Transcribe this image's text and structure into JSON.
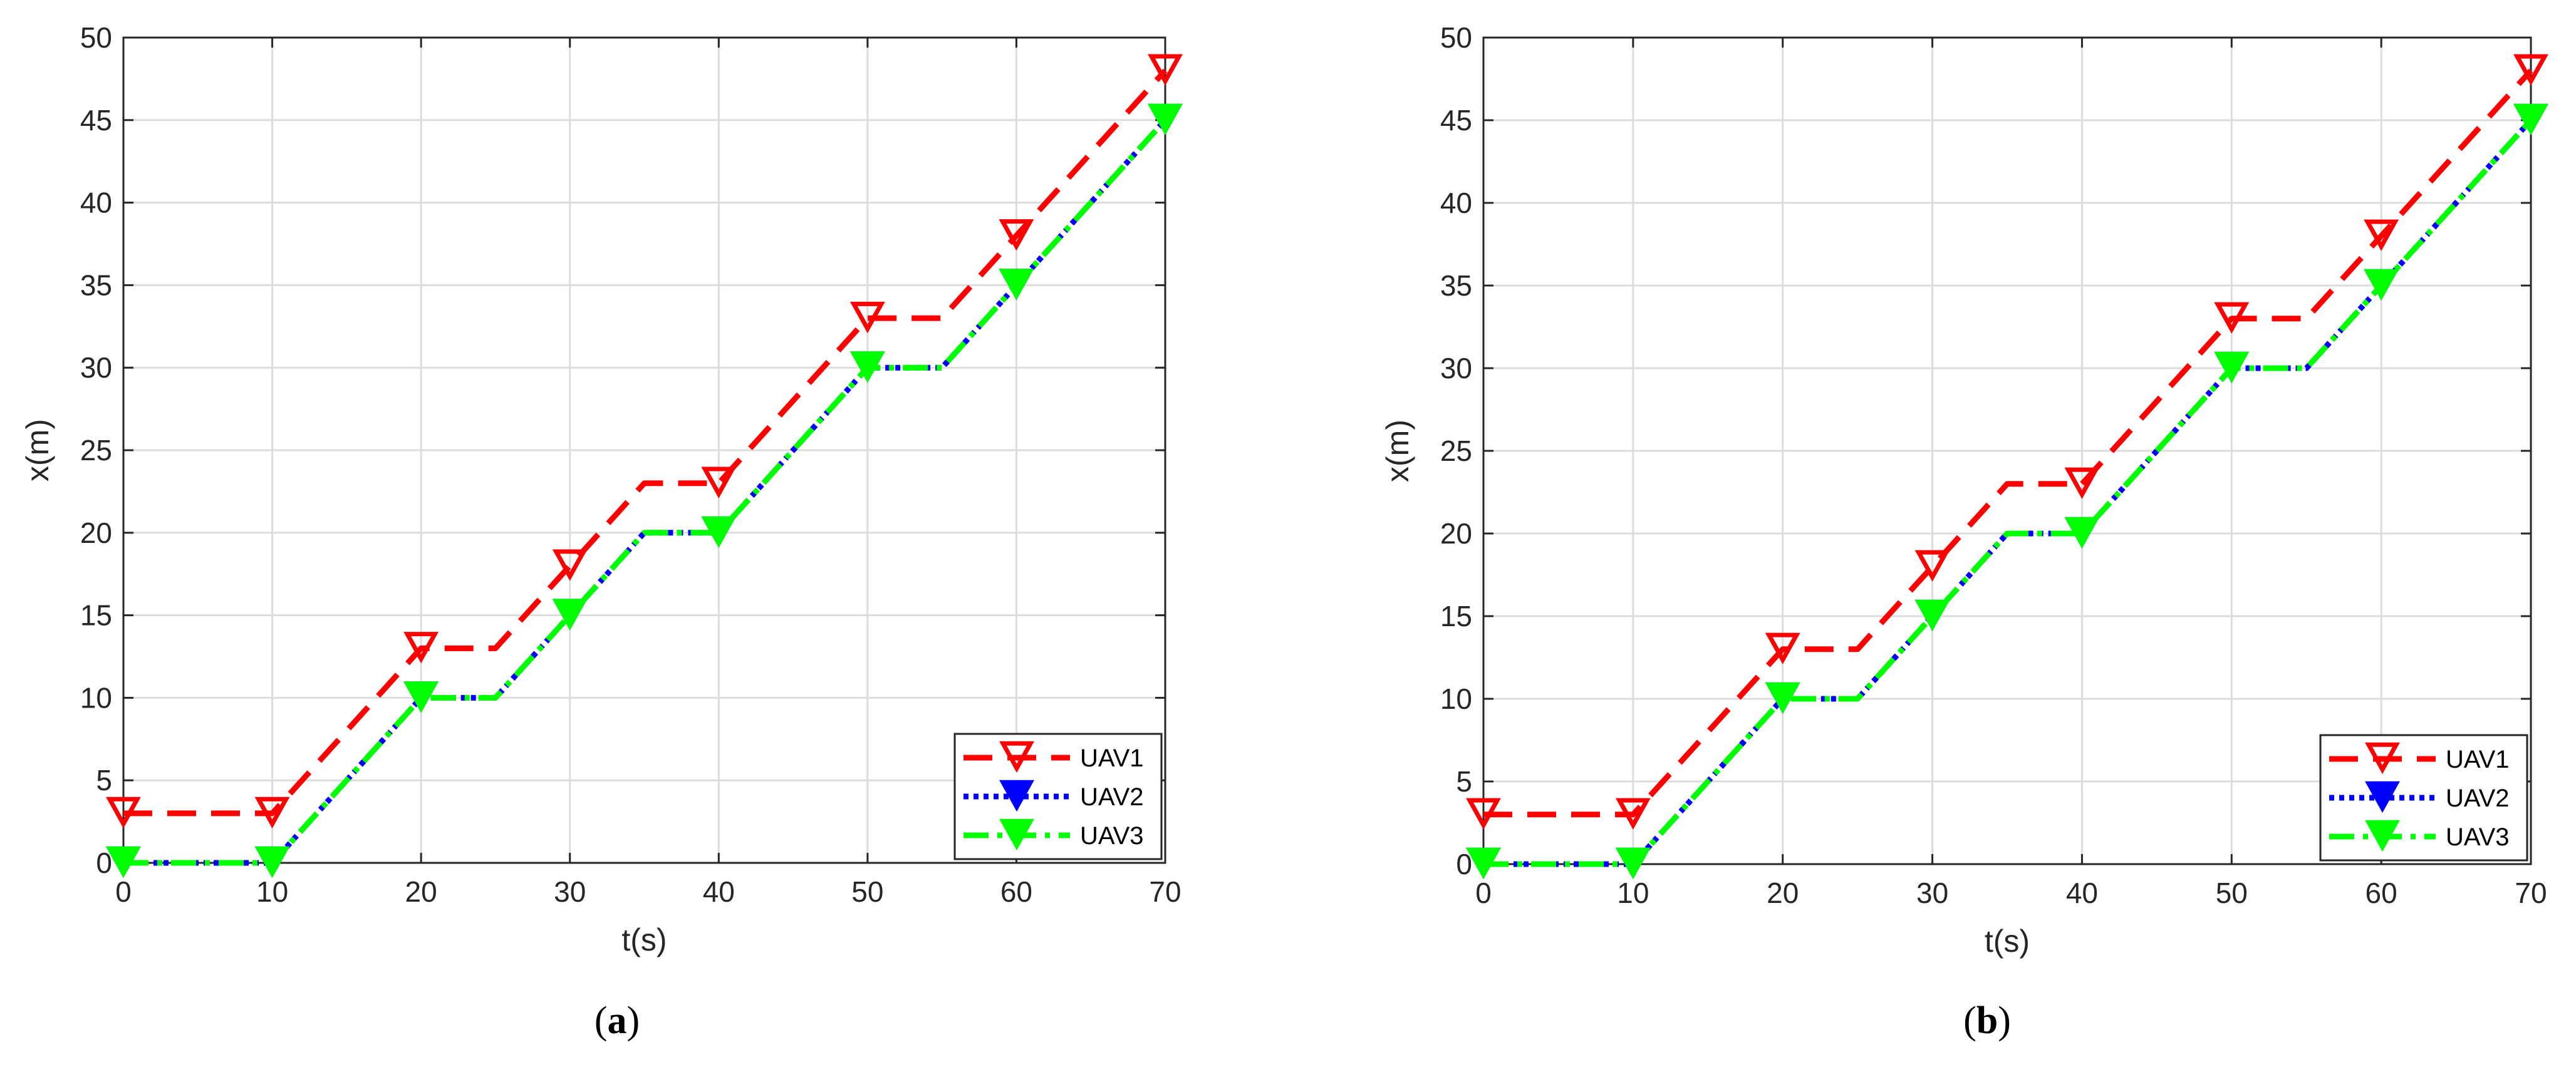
{
  "chart_data": [
    {
      "type": "line",
      "panel": "a",
      "caption": "a",
      "xlabel": "t(s)",
      "ylabel": "x(m)",
      "xlim": [
        0,
        70
      ],
      "ylim": [
        0,
        50
      ],
      "xticks": [
        0,
        10,
        20,
        30,
        40,
        50,
        60,
        70
      ],
      "yticks": [
        0,
        5,
        10,
        15,
        20,
        25,
        30,
        35,
        40,
        45,
        50
      ],
      "grid": true,
      "legend_position": "bottom-right",
      "x": [
        0,
        10,
        20,
        25,
        30,
        35,
        40,
        50,
        55,
        60,
        70
      ],
      "series": [
        {
          "name": "UAV1",
          "color": "#ff0000",
          "dash": "dashed",
          "values": [
            3,
            3,
            13,
            13,
            18,
            23,
            23,
            33,
            33,
            38,
            48
          ],
          "marker_x": [
            0,
            10,
            20,
            30,
            40,
            50,
            60,
            70
          ]
        },
        {
          "name": "UAV2",
          "color": "#0000ff",
          "dash": "dotted",
          "values": [
            0,
            0,
            10,
            10,
            15,
            20,
            20,
            30,
            30,
            35,
            45
          ],
          "marker_x": [
            0,
            10,
            20,
            30,
            40,
            50,
            60,
            70
          ]
        },
        {
          "name": "UAV3",
          "color": "#00ff00",
          "dash": "dashdot",
          "values": [
            0,
            0,
            10,
            10,
            15,
            20,
            20,
            30,
            30,
            35,
            45
          ],
          "marker_x": [
            0,
            10,
            20,
            30,
            40,
            50,
            60,
            70
          ]
        }
      ]
    },
    {
      "type": "line",
      "panel": "b",
      "caption": "b",
      "xlabel": "t(s)",
      "ylabel": "x(m)",
      "xlim": [
        0,
        70
      ],
      "ylim": [
        0,
        50
      ],
      "xticks": [
        0,
        10,
        20,
        30,
        40,
        50,
        60,
        70
      ],
      "yticks": [
        0,
        5,
        10,
        15,
        20,
        25,
        30,
        35,
        40,
        45,
        50
      ],
      "grid": true,
      "legend_position": "bottom-right",
      "x": [
        0,
        10,
        20,
        25,
        30,
        35,
        40,
        50,
        55,
        60,
        70
      ],
      "series": [
        {
          "name": "UAV1",
          "color": "#ff0000",
          "dash": "dashed",
          "values": [
            3,
            3,
            13,
            13,
            18,
            23,
            23,
            33,
            33,
            38,
            48
          ],
          "marker_x": [
            0,
            10,
            20,
            30,
            40,
            50,
            60,
            70
          ]
        },
        {
          "name": "UAV2",
          "color": "#0000ff",
          "dash": "dotted",
          "values": [
            0,
            0,
            10,
            10,
            15,
            20,
            20,
            30,
            30,
            35,
            45
          ],
          "marker_x": [
            0,
            10,
            20,
            30,
            40,
            50,
            60,
            70
          ]
        },
        {
          "name": "UAV3",
          "color": "#00ff00",
          "dash": "dashdot",
          "values": [
            0,
            0,
            10,
            10,
            15,
            20,
            20,
            30,
            30,
            35,
            45
          ],
          "marker_x": [
            0,
            10,
            20,
            30,
            40,
            50,
            60,
            70
          ]
        }
      ]
    }
  ]
}
